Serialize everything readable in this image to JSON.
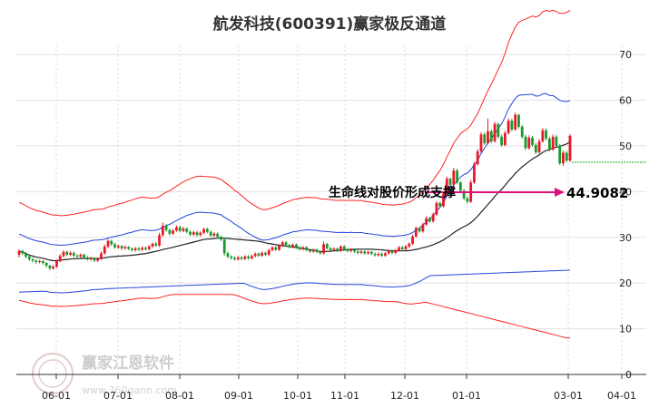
{
  "chart_data": {
    "type": "candlestick",
    "title": "航发科技(600391)赢家极反通道",
    "x_tick_labels": [
      "06-01",
      "07-01",
      "08-01",
      "09-01",
      "10-01",
      "11-01",
      "12-01",
      "01-01",
      "03-01",
      "04-01"
    ],
    "y_tick_labels": [
      "0",
      "10",
      "20",
      "30",
      "40",
      "50",
      "60",
      "70"
    ],
    "ylim": [
      0,
      72
    ],
    "annotation": "生命线对股价形成支撑",
    "annotation_value": "44.9082",
    "watermark": "赢家江恩软件",
    "watermark_url": "www.360gann.com",
    "colors": {
      "up": "#e8182a",
      "down": "#1a9a2a",
      "outer_band": "#ff2222",
      "inner_band": "#2244dd",
      "lifeline": "#222222",
      "arrow": "#e0107a",
      "reference_line": "#1aaa1a"
    },
    "candles": [
      [
        26.2,
        27.0,
        25.6,
        27.4
      ],
      [
        27.0,
        26.5,
        26.1,
        27.3
      ],
      [
        26.5,
        25.8,
        25.4,
        26.8
      ],
      [
        25.8,
        25.2,
        24.8,
        26.0
      ],
      [
        25.2,
        24.9,
        24.5,
        25.5
      ],
      [
        24.9,
        24.6,
        24.2,
        25.2
      ],
      [
        24.6,
        24.8,
        24.3,
        25.1
      ],
      [
        24.8,
        24.4,
        24.0,
        25.0
      ],
      [
        24.4,
        23.8,
        23.4,
        24.6
      ],
      [
        23.8,
        23.2,
        22.8,
        24.0
      ],
      [
        23.2,
        23.6,
        22.9,
        23.9
      ],
      [
        23.6,
        24.8,
        23.3,
        25.1
      ],
      [
        24.8,
        25.9,
        24.5,
        26.3
      ],
      [
        25.9,
        26.8,
        25.6,
        27.2
      ],
      [
        26.8,
        26.2,
        25.9,
        27.1
      ],
      [
        26.2,
        26.6,
        25.9,
        27.0
      ],
      [
        26.6,
        26.0,
        25.7,
        26.9
      ],
      [
        26.0,
        25.8,
        25.5,
        26.3
      ],
      [
        25.8,
        26.2,
        25.5,
        26.5
      ],
      [
        26.2,
        25.6,
        25.3,
        26.4
      ],
      [
        25.6,
        25.2,
        24.9,
        25.9
      ],
      [
        25.2,
        25.5,
        24.9,
        25.8
      ],
      [
        25.5,
        24.9,
        24.6,
        25.7
      ],
      [
        24.9,
        25.3,
        24.6,
        25.6
      ],
      [
        25.3,
        26.5,
        25.0,
        26.9
      ],
      [
        26.5,
        28.0,
        26.2,
        28.4
      ],
      [
        28.0,
        29.2,
        27.6,
        29.6
      ],
      [
        29.2,
        28.5,
        28.1,
        29.5
      ],
      [
        28.5,
        27.8,
        27.5,
        28.8
      ],
      [
        27.8,
        28.1,
        27.5,
        28.4
      ],
      [
        28.1,
        27.6,
        27.2,
        28.3
      ],
      [
        27.6,
        27.9,
        27.3,
        28.2
      ],
      [
        27.9,
        27.5,
        27.2,
        28.1
      ],
      [
        27.5,
        27.2,
        26.9,
        27.8
      ],
      [
        27.2,
        27.6,
        26.9,
        27.9
      ],
      [
        27.6,
        27.3,
        27.0,
        27.9
      ],
      [
        27.3,
        27.7,
        27.0,
        28.0
      ],
      [
        27.7,
        27.4,
        27.1,
        28.0
      ],
      [
        27.4,
        28.0,
        27.1,
        28.3
      ],
      [
        28.0,
        28.6,
        27.7,
        28.9
      ],
      [
        28.6,
        28.2,
        27.9,
        29.0
      ],
      [
        28.2,
        30.5,
        27.9,
        31.0
      ],
      [
        30.5,
        32.5,
        30.1,
        33.2
      ],
      [
        32.5,
        31.6,
        31.2,
        32.9
      ],
      [
        31.6,
        30.8,
        30.4,
        31.9
      ],
      [
        30.8,
        31.5,
        30.5,
        31.8
      ],
      [
        31.5,
        32.2,
        31.2,
        32.6
      ],
      [
        32.2,
        31.4,
        31.1,
        32.5
      ],
      [
        31.4,
        31.9,
        31.1,
        32.3
      ],
      [
        31.9,
        31.2,
        30.9,
        32.2
      ],
      [
        31.2,
        30.6,
        30.3,
        31.5
      ],
      [
        30.6,
        31.1,
        30.3,
        31.4
      ],
      [
        31.1,
        30.5,
        30.2,
        31.4
      ],
      [
        30.5,
        31.0,
        30.2,
        31.3
      ],
      [
        31.0,
        31.8,
        30.7,
        32.1
      ],
      [
        31.8,
        31.2,
        30.9,
        32.1
      ],
      [
        31.2,
        30.4,
        30.1,
        31.5
      ],
      [
        30.4,
        30.8,
        30.1,
        31.1
      ],
      [
        30.8,
        30.1,
        29.8,
        31.1
      ],
      [
        30.1,
        29.5,
        29.2,
        30.4
      ],
      [
        29.5,
        26.5,
        26.0,
        29.8
      ],
      [
        26.5,
        25.8,
        25.4,
        26.9
      ],
      [
        25.8,
        25.5,
        25.1,
        26.1
      ],
      [
        25.5,
        25.2,
        24.9,
        25.8
      ],
      [
        25.2,
        25.6,
        24.9,
        25.9
      ],
      [
        25.6,
        25.3,
        25.0,
        25.9
      ],
      [
        25.3,
        25.8,
        25.0,
        26.1
      ],
      [
        25.8,
        25.4,
        25.1,
        26.1
      ],
      [
        25.4,
        25.9,
        25.1,
        26.2
      ],
      [
        25.9,
        26.4,
        25.6,
        26.7
      ],
      [
        26.4,
        26.0,
        25.7,
        26.7
      ],
      [
        26.0,
        26.6,
        25.7,
        26.9
      ],
      [
        26.6,
        26.2,
        25.9,
        26.9
      ],
      [
        26.2,
        27.2,
        25.9,
        27.5
      ],
      [
        27.2,
        27.8,
        26.9,
        28.1
      ],
      [
        27.8,
        27.3,
        27.0,
        28.1
      ],
      [
        27.3,
        28.2,
        27.0,
        28.5
      ],
      [
        28.2,
        28.9,
        27.9,
        29.2
      ],
      [
        28.9,
        28.3,
        28.0,
        29.2
      ],
      [
        28.3,
        27.9,
        27.6,
        28.6
      ],
      [
        27.9,
        28.4,
        27.6,
        28.7
      ],
      [
        28.4,
        27.8,
        27.5,
        28.7
      ],
      [
        27.8,
        27.4,
        27.1,
        28.1
      ],
      [
        27.4,
        27.8,
        27.1,
        28.1
      ],
      [
        27.8,
        27.2,
        26.9,
        28.1
      ],
      [
        27.2,
        26.9,
        26.6,
        27.5
      ],
      [
        26.9,
        27.3,
        26.6,
        27.6
      ],
      [
        27.3,
        26.8,
        26.5,
        27.6
      ],
      [
        26.8,
        26.5,
        26.2,
        27.1
      ],
      [
        26.5,
        28.5,
        26.2,
        29.1
      ],
      [
        28.5,
        27.6,
        27.3,
        28.8
      ],
      [
        27.6,
        27.2,
        26.9,
        27.9
      ],
      [
        27.2,
        27.5,
        26.9,
        27.8
      ],
      [
        27.5,
        27.1,
        26.8,
        27.8
      ],
      [
        27.1,
        28.0,
        26.8,
        28.3
      ],
      [
        28.0,
        27.4,
        27.1,
        28.3
      ],
      [
        27.4,
        27.0,
        26.7,
        27.7
      ],
      [
        27.0,
        27.3,
        26.7,
        27.6
      ],
      [
        27.3,
        26.9,
        26.6,
        27.6
      ],
      [
        26.9,
        26.6,
        26.3,
        27.2
      ],
      [
        26.6,
        26.9,
        26.3,
        27.2
      ],
      [
        26.9,
        26.5,
        26.2,
        27.2
      ],
      [
        26.5,
        26.8,
        26.2,
        27.1
      ],
      [
        26.8,
        26.4,
        26.1,
        27.1
      ],
      [
        26.4,
        26.1,
        25.8,
        26.7
      ],
      [
        26.1,
        26.4,
        25.8,
        26.7
      ],
      [
        26.4,
        26.0,
        25.7,
        26.7
      ],
      [
        26.0,
        26.5,
        25.7,
        26.8
      ],
      [
        26.5,
        27.0,
        26.2,
        27.3
      ],
      [
        27.0,
        26.6,
        26.3,
        27.3
      ],
      [
        26.6,
        27.2,
        26.3,
        27.5
      ],
      [
        27.2,
        27.8,
        26.9,
        28.1
      ],
      [
        27.8,
        27.4,
        27.1,
        28.1
      ],
      [
        27.4,
        28.0,
        27.1,
        28.3
      ],
      [
        28.0,
        28.6,
        27.7,
        28.9
      ],
      [
        28.6,
        30.2,
        28.3,
        30.6
      ],
      [
        30.2,
        32.0,
        29.9,
        32.4
      ],
      [
        32.0,
        31.3,
        31.0,
        32.3
      ],
      [
        31.3,
        32.8,
        31.0,
        33.2
      ],
      [
        32.8,
        34.2,
        32.5,
        34.6
      ],
      [
        34.2,
        33.5,
        33.2,
        34.5
      ],
      [
        33.5,
        35.0,
        33.2,
        35.4
      ],
      [
        35.0,
        37.5,
        34.7,
        37.9
      ],
      [
        37.5,
        36.8,
        36.5,
        37.8
      ],
      [
        36.8,
        39.5,
        36.5,
        40.0
      ],
      [
        39.5,
        42.8,
        39.2,
        43.3
      ],
      [
        42.8,
        41.5,
        41.1,
        43.1
      ],
      [
        41.5,
        44.6,
        41.2,
        45.2
      ],
      [
        44.6,
        42.0,
        41.6,
        45.0
      ],
      [
        42.0,
        40.2,
        39.8,
        42.3
      ],
      [
        40.2,
        38.5,
        38.1,
        40.6
      ],
      [
        38.5,
        37.8,
        37.4,
        38.9
      ],
      [
        37.8,
        42.0,
        37.5,
        42.6
      ],
      [
        42.0,
        46.0,
        41.7,
        46.5
      ],
      [
        46.0,
        48.8,
        45.7,
        49.3
      ],
      [
        48.8,
        52.5,
        48.5,
        53.0
      ],
      [
        52.5,
        50.6,
        50.2,
        52.9
      ],
      [
        50.6,
        53.2,
        50.3,
        56.0
      ],
      [
        53.2,
        51.0,
        50.6,
        53.6
      ],
      [
        51.0,
        54.8,
        50.7,
        55.3
      ],
      [
        54.8,
        52.0,
        51.6,
        55.1
      ],
      [
        52.0,
        50.2,
        49.8,
        52.4
      ],
      [
        50.2,
        52.8,
        49.9,
        53.3
      ],
      [
        52.8,
        55.5,
        52.5,
        56.0
      ],
      [
        55.5,
        53.6,
        53.2,
        55.9
      ],
      [
        53.6,
        56.8,
        53.3,
        57.3
      ],
      [
        56.8,
        54.2,
        53.8,
        57.0
      ],
      [
        54.2,
        52.0,
        51.6,
        54.6
      ],
      [
        52.0,
        49.5,
        49.1,
        52.4
      ],
      [
        49.5,
        51.8,
        49.2,
        52.3
      ],
      [
        51.8,
        50.2,
        49.8,
        52.2
      ],
      [
        50.2,
        48.6,
        48.2,
        50.6
      ],
      [
        48.6,
        51.0,
        48.3,
        51.5
      ],
      [
        51.0,
        53.4,
        50.7,
        53.9
      ],
      [
        53.4,
        51.6,
        51.2,
        53.8
      ],
      [
        51.6,
        49.2,
        48.8,
        52.0
      ],
      [
        49.2,
        52.0,
        48.9,
        52.5
      ],
      [
        52.0,
        50.0,
        49.6,
        52.4
      ],
      [
        50.0,
        46.2,
        45.8,
        50.4
      ],
      [
        46.2,
        48.5,
        45.6,
        49.0
      ],
      [
        48.5,
        46.8,
        46.4,
        48.9
      ],
      [
        46.8,
        52.2,
        46.5,
        52.6
      ]
    ]
  }
}
